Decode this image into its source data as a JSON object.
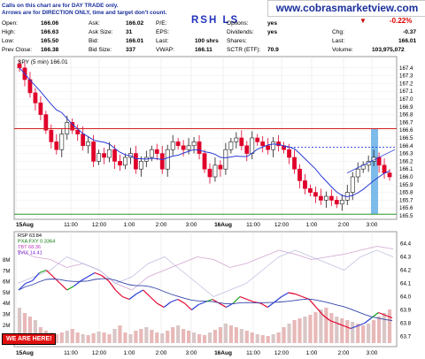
{
  "notes": {
    "line1": "Calls on this chart are for DAY TRADE only.",
    "line2": "Arrows are for DIRECTION ONLY, time and target don't count."
  },
  "site_url": "www.cobrasmarketview.com",
  "symbol": "RSH LS",
  "header_left": [
    {
      "label": "Open:",
      "value": "166.06"
    },
    {
      "label": "High:",
      "value": "166.63"
    },
    {
      "label": "Low:",
      "value": "165.50"
    },
    {
      "label": "Prev Close:",
      "value": "166.38"
    }
  ],
  "header_mid": [
    {
      "label": "Ask:",
      "value": "166.02"
    },
    {
      "label": "Ask Size:",
      "value": "31"
    },
    {
      "label": "Bid:",
      "value": "166.01"
    },
    {
      "label": "Bid Size:",
      "value": "337"
    }
  ],
  "header_mid2": [
    {
      "label": "P/E:",
      "value": ""
    },
    {
      "label": "EPS:",
      "value": ""
    },
    {
      "label": "Last:",
      "value": "100 shrs"
    },
    {
      "label": "VWAP:",
      "value": "166.11"
    }
  ],
  "header_right": [
    {
      "label": "Options:",
      "value": "yes"
    },
    {
      "label": "Dividends:",
      "value": "yes"
    },
    {
      "label": "Shares:",
      "value": ""
    },
    {
      "label": "SCTR (ETF):",
      "value": "70.9"
    }
  ],
  "quote": {
    "change_pct": "-0.22%",
    "chg_label": "Chg:",
    "chg": "-0.37",
    "last_label": "Last:",
    "last": "166.01",
    "volume_label": "Volume:",
    "volume": "103,975,072"
  },
  "badge": "WE ARE HERE!",
  "colors": {
    "up": "#1a1a1a",
    "down": "#e0002a",
    "ma": "#2b3bd6",
    "resistance": "#d42020",
    "support": "#2a9a2a",
    "bar_highlight": "#6fb4e8"
  },
  "chart_data": [
    {
      "type": "candlestick",
      "title": "SPY (5 min) 166.01",
      "ylim": [
        165.5,
        167.5
      ],
      "y_ticks": [
        "167.4",
        "167.3",
        "167.2",
        "167.1",
        "167.0",
        "166.9",
        "166.8",
        "166.7",
        "166.6",
        "166.5",
        "166.4",
        "166.3",
        "166.2",
        "166.1",
        "166.0",
        "165.9",
        "165.8",
        "165.7",
        "165.6",
        "165.5"
      ],
      "x_ticks": [
        "15Aug",
        "11:00",
        "12:00",
        "1:00",
        "2:00",
        "3:00",
        "16Aug",
        "11:00",
        "12:00",
        "1:00",
        "2:00",
        "3:00"
      ],
      "close": [
        167.4,
        167.25,
        167.08,
        166.95,
        166.8,
        166.6,
        166.45,
        166.35,
        166.55,
        166.7,
        166.6,
        166.55,
        166.4,
        166.45,
        166.2,
        166.3,
        166.25,
        166.35,
        166.2,
        166.15,
        166.25,
        166.3,
        166.1,
        166.2,
        166.25,
        166.35,
        166.3,
        166.1,
        166.35,
        166.45,
        166.4,
        166.35,
        166.4,
        166.45,
        166.3,
        166.1,
        166.0,
        166.15,
        166.1,
        166.35,
        166.45,
        166.5,
        166.4,
        166.3,
        166.5,
        166.45,
        166.4,
        166.35,
        166.45,
        166.4,
        166.35,
        166.25,
        166.1,
        165.95,
        165.85,
        165.8,
        165.75,
        165.7,
        165.75,
        165.7,
        165.65,
        165.7,
        165.8,
        166.0,
        166.1,
        166.15,
        166.2,
        166.25,
        166.15,
        166.05,
        166.0
      ],
      "resistance": 166.62,
      "support": 165.52,
      "dashed_level": 166.38
    },
    {
      "type": "line",
      "legend": [
        {
          "name": "RSP 63.84",
          "color": "#000000"
        },
        {
          "name": "PXA:FXY 0.3364",
          "color": "#0a7a0a"
        },
        {
          "name": "TBT 68.36",
          "color": "#bb33bb"
        },
        {
          "name": "$VIX 14.41",
          "color": "#7722cc"
        }
      ],
      "y_ticks": [
        "64.4",
        "64.3",
        "64.2",
        "64.1",
        "64.0",
        "63.9",
        "63.8",
        "63.7"
      ],
      "volume_ticks": [
        "8M",
        "7M",
        "6M",
        "5M",
        "4M",
        "3M",
        "2M",
        "1M"
      ],
      "x_ticks": [
        "15Aug",
        "11:00",
        "12:00",
        "1:00",
        "2:00",
        "3:00",
        "16Aug",
        "11:00",
        "12:00",
        "1:00",
        "2:00",
        "3:00"
      ],
      "rsp": [
        64.05,
        64.1,
        64.12,
        64.18,
        64.2,
        64.15,
        64.1,
        64.05,
        64.08,
        64.12,
        64.15,
        64.18,
        64.16,
        64.12,
        64.05,
        64.0,
        63.98,
        64.02,
        64.05,
        64.0,
        63.95,
        63.92,
        63.96,
        63.98,
        63.95,
        63.9,
        63.94,
        63.96,
        63.98,
        63.95,
        63.92,
        63.95,
        64.0,
        63.98,
        63.96,
        63.95,
        63.92,
        63.96,
        64.0,
        64.03,
        64.02,
        64.0,
        63.98,
        63.92,
        63.86,
        63.82,
        63.8,
        63.78,
        63.76,
        63.78,
        63.8,
        63.84,
        63.88,
        63.86,
        63.84
      ]
    }
  ]
}
